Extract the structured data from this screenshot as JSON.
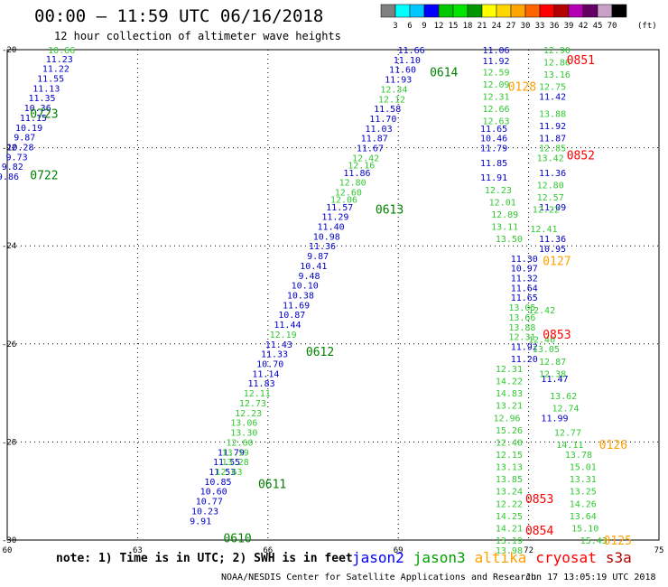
{
  "header": {
    "title": "00:00 – 11:59 UTC 06/16/2018",
    "subtitle": "12 hour collection of altimeter wave heights"
  },
  "colorbar": {
    "labels": [
      "3",
      "6",
      "9",
      "12",
      "15",
      "18",
      "21",
      "24",
      "27",
      "30",
      "33",
      "36",
      "39",
      "42",
      "45",
      "70"
    ],
    "unit": "(ft)",
    "colors": [
      "#808080",
      "#00ffff",
      "#00c8ff",
      "#0000ff",
      "#00c800",
      "#00e600",
      "#009600",
      "#ffff00",
      "#ffd700",
      "#ffa500",
      "#ff6400",
      "#ff0000",
      "#b40000",
      "#b400b4",
      "#640064",
      "#c8a0c8",
      "#000000"
    ]
  },
  "footer": {
    "note": "note: 1) Time is in UTC; 2) SWH is in feet",
    "credit": "NOAA/NESDIS Center for Satellite Applications and Research",
    "timestamp": "Jun 17 13:05:19 UTC 2018",
    "satellites": [
      {
        "name": "jason2",
        "color": "#0000ff"
      },
      {
        "name": "jason3",
        "color": "#00a000"
      },
      {
        "name": "altika",
        "color": "#ffa000"
      },
      {
        "name": "cryosat",
        "color": "#ff0000"
      },
      {
        "name": "s3a",
        "color": "#b40000"
      }
    ]
  },
  "chart_data": {
    "type": "scatter",
    "xlim": [
      60,
      75
    ],
    "ylim": [
      -30,
      -20
    ],
    "x_ticks": [
      60,
      63,
      66,
      69,
      72,
      75
    ],
    "y_ticks": [
      -20,
      -22,
      -24,
      -26,
      -28,
      -30
    ],
    "x_tick_labels": [
      "60",
      "63",
      "66",
      "69",
      "72",
      "75"
    ],
    "y_tick_labels": [
      "-20",
      "-22",
      "-24",
      "-26",
      "-28",
      "-30"
    ],
    "grid": true,
    "series": [
      {
        "name": "jason2",
        "color": "#0000c8",
        "points": [
          {
            "x": 61.2,
            "y": -20.18,
            "v": "11.23"
          },
          {
            "x": 61.12,
            "y": -20.38,
            "v": "11.22"
          },
          {
            "x": 61.0,
            "y": -20.58,
            "v": "11.55"
          },
          {
            "x": 60.9,
            "y": -20.78,
            "v": "11.13"
          },
          {
            "x": 60.8,
            "y": -20.98,
            "v": "11.35"
          },
          {
            "x": 60.7,
            "y": -21.18,
            "v": "10.36"
          },
          {
            "x": 60.6,
            "y": -21.38,
            "v": "11.15"
          },
          {
            "x": 60.5,
            "y": -21.58,
            "v": "10.19"
          },
          {
            "x": 60.4,
            "y": -21.78,
            "v": "9.87"
          },
          {
            "x": 60.3,
            "y": -21.98,
            "v": "10.28"
          },
          {
            "x": 60.22,
            "y": -22.18,
            "v": "9.73"
          },
          {
            "x": 60.12,
            "y": -22.38,
            "v": "9.82"
          },
          {
            "x": 60.02,
            "y": -22.58,
            "v": "9.86"
          },
          {
            "x": 69.3,
            "y": -20.0,
            "v": "11.66"
          },
          {
            "x": 69.2,
            "y": -20.2,
            "v": "11.10"
          },
          {
            "x": 69.1,
            "y": -20.4,
            "v": "11.60"
          },
          {
            "x": 69.0,
            "y": -20.6,
            "v": "11.93"
          },
          {
            "x": 68.75,
            "y": -21.2,
            "v": "11.58"
          },
          {
            "x": 68.65,
            "y": -21.4,
            "v": "11.70"
          },
          {
            "x": 68.55,
            "y": -21.6,
            "v": "11.03"
          },
          {
            "x": 68.45,
            "y": -21.8,
            "v": "11.87"
          },
          {
            "x": 68.35,
            "y": -22.0,
            "v": "11.67"
          },
          {
            "x": 68.05,
            "y": -22.5,
            "v": "11.86"
          },
          {
            "x": 67.65,
            "y": -23.2,
            "v": "11.57"
          },
          {
            "x": 67.55,
            "y": -23.4,
            "v": "11.29"
          },
          {
            "x": 67.45,
            "y": -23.6,
            "v": "11.40"
          },
          {
            "x": 67.35,
            "y": -23.8,
            "v": "10.98"
          },
          {
            "x": 67.25,
            "y": -24.0,
            "v": "11.36"
          },
          {
            "x": 67.15,
            "y": -24.2,
            "v": "9.87"
          },
          {
            "x": 67.05,
            "y": -24.4,
            "v": "10.41"
          },
          {
            "x": 66.95,
            "y": -24.6,
            "v": "9.48"
          },
          {
            "x": 66.85,
            "y": -24.8,
            "v": "10.10"
          },
          {
            "x": 66.75,
            "y": -25.0,
            "v": "10.38"
          },
          {
            "x": 66.65,
            "y": -25.2,
            "v": "11.69"
          },
          {
            "x": 66.55,
            "y": -25.4,
            "v": "10.87"
          },
          {
            "x": 66.45,
            "y": -25.6,
            "v": "11.44"
          },
          {
            "x": 66.25,
            "y": -26.0,
            "v": "11.43"
          },
          {
            "x": 66.15,
            "y": -26.2,
            "v": "11.33"
          },
          {
            "x": 66.05,
            "y": -26.4,
            "v": "10.70"
          },
          {
            "x": 65.95,
            "y": -26.6,
            "v": "11.14"
          },
          {
            "x": 65.85,
            "y": -26.8,
            "v": "11.83"
          },
          {
            "x": 65.15,
            "y": -28.2,
            "v": "11.79"
          },
          {
            "x": 65.05,
            "y": -28.4,
            "v": "11.55"
          },
          {
            "x": 64.95,
            "y": -28.6,
            "v": "11.53"
          },
          {
            "x": 64.85,
            "y": -28.8,
            "v": "10.85"
          },
          {
            "x": 64.75,
            "y": -29.0,
            "v": "10.60"
          },
          {
            "x": 64.65,
            "y": -29.2,
            "v": "10.77"
          },
          {
            "x": 64.55,
            "y": -29.4,
            "v": "10.23"
          },
          {
            "x": 64.45,
            "y": -29.6,
            "v": "9.91"
          },
          {
            "x": 71.25,
            "y": -20.0,
            "v": "11.06"
          },
          {
            "x": 71.25,
            "y": -20.22,
            "v": "11.92"
          },
          {
            "x": 71.2,
            "y": -21.6,
            "v": "11.65"
          },
          {
            "x": 71.2,
            "y": -21.8,
            "v": "10.46"
          },
          {
            "x": 71.2,
            "y": -22.0,
            "v": "11.79"
          },
          {
            "x": 71.2,
            "y": -22.3,
            "v": "11.85"
          },
          {
            "x": 71.2,
            "y": -22.6,
            "v": "11.91"
          },
          {
            "x": 72.55,
            "y": -20.95,
            "v": "11.42"
          },
          {
            "x": 72.55,
            "y": -21.55,
            "v": "11.92"
          },
          {
            "x": 72.55,
            "y": -21.8,
            "v": "11.87"
          },
          {
            "x": 72.55,
            "y": -22.5,
            "v": "11.36"
          },
          {
            "x": 72.55,
            "y": -23.2,
            "v": "11.09"
          },
          {
            "x": 72.55,
            "y": -23.85,
            "v": "11.36"
          },
          {
            "x": 72.55,
            "y": -24.05,
            "v": "10.95"
          },
          {
            "x": 71.9,
            "y": -24.25,
            "v": "11.30"
          },
          {
            "x": 71.9,
            "y": -24.45,
            "v": "10.97"
          },
          {
            "x": 71.9,
            "y": -24.65,
            "v": "11.32"
          },
          {
            "x": 71.9,
            "y": -24.85,
            "v": "11.64"
          },
          {
            "x": 71.9,
            "y": -25.05,
            "v": "11.65"
          },
          {
            "x": 71.9,
            "y": -26.05,
            "v": "11.92"
          },
          {
            "x": 71.9,
            "y": -26.3,
            "v": "11.20"
          },
          {
            "x": 72.6,
            "y": -26.7,
            "v": "11.47"
          },
          {
            "x": 72.6,
            "y": -27.5,
            "v": "11.99"
          }
        ]
      },
      {
        "name": "jason3",
        "color": "#32c832",
        "points": [
          {
            "x": 61.25,
            "y": -20.0,
            "v": "10.66"
          },
          {
            "x": 68.9,
            "y": -20.8,
            "v": "12.34"
          },
          {
            "x": 68.85,
            "y": -21.0,
            "v": "12.12"
          },
          {
            "x": 68.25,
            "y": -22.2,
            "v": "12.42"
          },
          {
            "x": 68.15,
            "y": -22.35,
            "v": "12.16"
          },
          {
            "x": 67.95,
            "y": -22.7,
            "v": "12.80"
          },
          {
            "x": 67.85,
            "y": -22.9,
            "v": "12.60"
          },
          {
            "x": 67.75,
            "y": -23.05,
            "v": "12.06"
          },
          {
            "x": 66.35,
            "y": -25.8,
            "v": "12.19"
          },
          {
            "x": 65.75,
            "y": -27.0,
            "v": "12.11"
          },
          {
            "x": 65.65,
            "y": -27.2,
            "v": "12.73"
          },
          {
            "x": 65.55,
            "y": -27.4,
            "v": "12.23"
          },
          {
            "x": 65.45,
            "y": -27.6,
            "v": "13.06"
          },
          {
            "x": 65.45,
            "y": -27.8,
            "v": "13.30"
          },
          {
            "x": 65.35,
            "y": -28.0,
            "v": "12.60"
          },
          {
            "x": 65.25,
            "y": -28.2,
            "v": "13.19"
          },
          {
            "x": 65.25,
            "y": -28.4,
            "v": "13.28"
          },
          {
            "x": 65.1,
            "y": -28.6,
            "v": "12.63"
          },
          {
            "x": 71.25,
            "y": -20.45,
            "v": "12.59"
          },
          {
            "x": 71.25,
            "y": -20.7,
            "v": "12.09"
          },
          {
            "x": 71.25,
            "y": -20.95,
            "v": "12.31"
          },
          {
            "x": 71.25,
            "y": -21.2,
            "v": "12.66"
          },
          {
            "x": 71.25,
            "y": -21.45,
            "v": "12.63"
          },
          {
            "x": 71.3,
            "y": -22.85,
            "v": "12.23"
          },
          {
            "x": 71.4,
            "y": -23.1,
            "v": "12.01"
          },
          {
            "x": 71.45,
            "y": -23.35,
            "v": "12.89"
          },
          {
            "x": 71.45,
            "y": -23.6,
            "v": "13.11"
          },
          {
            "x": 71.55,
            "y": -23.85,
            "v": "13.50"
          },
          {
            "x": 71.85,
            "y": -25.25,
            "v": "13.05"
          },
          {
            "x": 71.85,
            "y": -25.45,
            "v": "13.66"
          },
          {
            "x": 71.85,
            "y": -25.65,
            "v": "13.88"
          },
          {
            "x": 71.85,
            "y": -25.85,
            "v": "12.31"
          },
          {
            "x": 71.55,
            "y": -26.5,
            "v": "12.31"
          },
          {
            "x": 71.55,
            "y": -26.75,
            "v": "14.22"
          },
          {
            "x": 71.55,
            "y": -27.0,
            "v": "14.83"
          },
          {
            "x": 71.55,
            "y": -27.25,
            "v": "13.21"
          },
          {
            "x": 71.5,
            "y": -27.5,
            "v": "12.96"
          },
          {
            "x": 71.55,
            "y": -27.75,
            "v": "15.26"
          },
          {
            "x": 71.55,
            "y": -28.0,
            "v": "12.40"
          },
          {
            "x": 71.55,
            "y": -28.25,
            "v": "12.15"
          },
          {
            "x": 71.55,
            "y": -28.5,
            "v": "13.13"
          },
          {
            "x": 71.55,
            "y": -28.75,
            "v": "13.85"
          },
          {
            "x": 71.55,
            "y": -29.0,
            "v": "13.24"
          },
          {
            "x": 71.55,
            "y": -29.25,
            "v": "12.22"
          },
          {
            "x": 71.55,
            "y": -29.5,
            "v": "14.25"
          },
          {
            "x": 71.55,
            "y": -29.75,
            "v": "14.21"
          },
          {
            "x": 71.55,
            "y": -30.0,
            "v": "13.19"
          },
          {
            "x": 71.55,
            "y": -30.2,
            "v": "13.98"
          },
          {
            "x": 72.65,
            "y": -20.0,
            "v": "12.90"
          },
          {
            "x": 72.65,
            "y": -20.25,
            "v": "12.86"
          },
          {
            "x": 72.65,
            "y": -20.5,
            "v": "13.16"
          },
          {
            "x": 72.55,
            "y": -20.75,
            "v": "12.75"
          },
          {
            "x": 72.55,
            "y": -21.3,
            "v": "13.88"
          },
          {
            "x": 72.55,
            "y": -22.0,
            "v": "12.85"
          },
          {
            "x": 72.5,
            "y": -22.2,
            "v": "13.42"
          },
          {
            "x": 72.5,
            "y": -22.75,
            "v": "12.80"
          },
          {
            "x": 72.5,
            "y": -23.0,
            "v": "12.57"
          },
          {
            "x": 72.4,
            "y": -23.25,
            "v": "12.22"
          },
          {
            "x": 72.35,
            "y": -23.65,
            "v": "12.41"
          },
          {
            "x": 72.3,
            "y": -25.3,
            "v": "12.42"
          },
          {
            "x": 72.3,
            "y": -25.9,
            "v": "12.40"
          },
          {
            "x": 72.4,
            "y": -26.1,
            "v": "13.05"
          },
          {
            "x": 72.55,
            "y": -26.35,
            "v": "12.87"
          },
          {
            "x": 72.55,
            "y": -26.6,
            "v": "12.38"
          },
          {
            "x": 72.8,
            "y": -27.05,
            "v": "13.62"
          },
          {
            "x": 72.85,
            "y": -27.3,
            "v": "12.74"
          },
          {
            "x": 72.9,
            "y": -27.8,
            "v": "12.77"
          },
          {
            "x": 72.95,
            "y": -28.05,
            "v": "14.11"
          },
          {
            "x": 73.15,
            "y": -28.25,
            "v": "13.78"
          },
          {
            "x": 73.25,
            "y": -28.5,
            "v": "15.01"
          },
          {
            "x": 73.25,
            "y": -28.75,
            "v": "13.31"
          },
          {
            "x": 73.25,
            "y": -29.0,
            "v": "13.25"
          },
          {
            "x": 73.25,
            "y": -29.25,
            "v": "14.26"
          },
          {
            "x": 73.25,
            "y": -29.5,
            "v": "13.64"
          },
          {
            "x": 73.3,
            "y": -29.75,
            "v": "15.10"
          },
          {
            "x": 73.5,
            "y": -30.0,
            "v": "15.43"
          }
        ]
      }
    ],
    "time_labels": [
      {
        "x": 60.85,
        "y": -21.3,
        "t": "0723",
        "color": "#008000"
      },
      {
        "x": 60.85,
        "y": -22.55,
        "t": "0722",
        "color": "#008000"
      },
      {
        "x": 70.05,
        "y": -20.45,
        "t": "0614",
        "color": "#008000"
      },
      {
        "x": 68.8,
        "y": -23.25,
        "t": "0613",
        "color": "#008000"
      },
      {
        "x": 67.2,
        "y": -26.15,
        "t": "0612",
        "color": "#008000"
      },
      {
        "x": 66.1,
        "y": -28.85,
        "t": "0611",
        "color": "#008000"
      },
      {
        "x": 65.3,
        "y": -29.95,
        "t": "0610",
        "color": "#008000"
      },
      {
        "x": 73.2,
        "y": -20.2,
        "t": "0851",
        "color": "#ff0000"
      },
      {
        "x": 73.2,
        "y": -22.15,
        "t": "0852",
        "color": "#ff0000"
      },
      {
        "x": 72.65,
        "y": -25.8,
        "t": "0853",
        "color": "#ff0000"
      },
      {
        "x": 72.25,
        "y": -29.15,
        "t": "0853",
        "color": "#ff0000"
      },
      {
        "x": 72.25,
        "y": -29.8,
        "t": "0854",
        "color": "#ff0000"
      },
      {
        "x": 71.85,
        "y": -20.75,
        "t": "0128",
        "color": "#ffa000"
      },
      {
        "x": 72.65,
        "y": -24.3,
        "t": "0127",
        "color": "#ffa000"
      },
      {
        "x": 73.95,
        "y": -28.05,
        "t": "0126",
        "color": "#ffa000"
      },
      {
        "x": 74.05,
        "y": -30.0,
        "t": "0125",
        "color": "#ffa000"
      }
    ]
  }
}
